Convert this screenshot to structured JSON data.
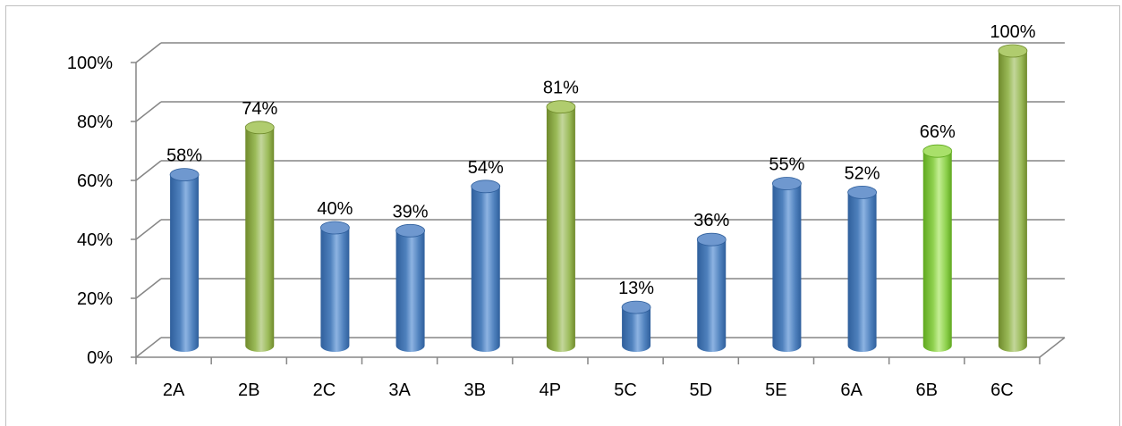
{
  "chart_data": {
    "type": "bar",
    "title": "",
    "xlabel": "",
    "ylabel": "",
    "categories": [
      "2A",
      "2B",
      "2C",
      "3A",
      "3B",
      "4P",
      "5C",
      "5D",
      "5E",
      "6A",
      "6B",
      "6C"
    ],
    "values": [
      58,
      74,
      40,
      39,
      54,
      81,
      13,
      36,
      55,
      52,
      66,
      100
    ],
    "data_labels": [
      "58%",
      "74%",
      "40%",
      "39%",
      "54%",
      "81%",
      "13%",
      "36%",
      "55%",
      "52%",
      "66%",
      "100%"
    ],
    "bar_colors": [
      "blue",
      "olive",
      "blue",
      "blue",
      "blue",
      "olive",
      "blue",
      "blue",
      "blue",
      "blue",
      "lime",
      "olive"
    ],
    "ylim": [
      0,
      100
    ],
    "y_ticks": [
      "0%",
      "20%",
      "40%",
      "60%",
      "80%",
      "100%"
    ],
    "y_tick_values": [
      0,
      20,
      40,
      60,
      80,
      100
    ],
    "grid": true,
    "style": "3d-cylinder",
    "legend": "none"
  },
  "colors": {
    "blue": {
      "dark": "#2f5f9c",
      "mid": "#4f81bd",
      "light": "#8db3e2",
      "top": "#6f98cf"
    },
    "olive": {
      "dark": "#6f8a2b",
      "mid": "#9bbb59",
      "light": "#c3d69b",
      "top": "#b0cc6e"
    },
    "lime": {
      "dark": "#5fa81e",
      "mid": "#8fd14f",
      "light": "#c4ee94",
      "top": "#a9e06a"
    },
    "grid": "#868686",
    "axis": "#868686"
  }
}
